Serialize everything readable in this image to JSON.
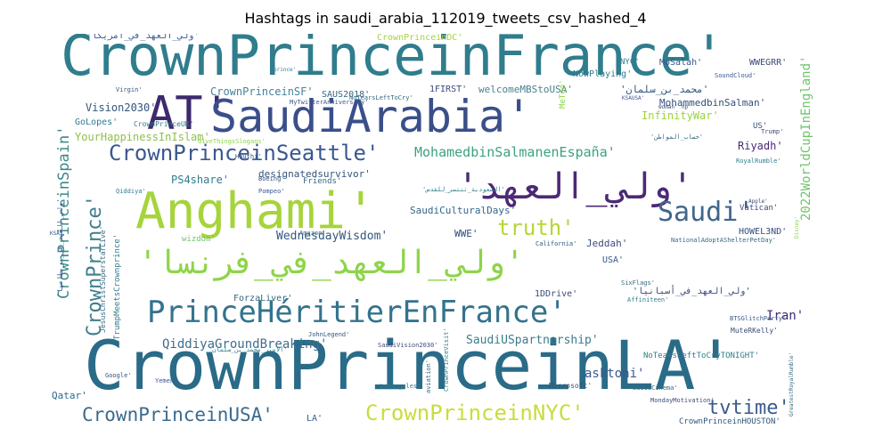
{
  "title": "Hashtags in saudi_arabia_112019_tweets_csv_hashed_4",
  "words": [
    "CrownPrinceinFrance'",
    "CrownPrinceinLA'",
    "AT'",
    "SaudiArabia'",
    "Anghami'",
    "'ولي_العهد_في_فرنسا'",
    "PrinceHéritierEnFrance'",
    "'ولي_العهد'",
    "CrownPrinceinSeattle'",
    "CrownPrinceinUSA'",
    "CrownPrinceinNYC'",
    "CrownPrince'",
    "Saudi'",
    "tvtime'",
    "CrownPrinceinSpain'",
    "truth'",
    "MohamedbinSalmanenEspaña'",
    "QiddiyaGroundBreaking'",
    "2022WorldCupInEngland'",
    "SaudiUSpartnership'",
    "WednesdayWisdom'",
    "YourHappinessInIslam'",
    "CrownPrinceinSF'",
    "Vision2030'",
    "SaudiCulturalDays'",
    "welcomeMBStoUSA'",
    "MohammedbinSalman'",
    "InfinityWar'",
    "PS4share'",
    "designatedsurvivor'",
    "ForzaLiver'",
    "1DDrive'",
    "asktoni'",
    "Riyadh'",
    "Iran'",
    "HOWEL3ND'",
    "Jeddah'",
    "WWE'",
    "USA'",
    "Qatar'",
    "GoLopes'",
    "1FIRST'",
    "SAUS2018'",
    "MoSalah'",
    "WWEGRR'",
    "NowPlaying'",
    "CrownPrinceinDC'",
    "NoTearsLeftToCryTONIGHT'",
    "CrownPrinceinHOUSTON'",
    "Vatican'",
    "MeToo'",
    "LA'",
    "wizdom'",
    "TrumpMeetsCrownprince'",
    "JesusChristSuperstarLive'",
    "Friends'",
    "NYC'",
    "US'",
    "CrownPrinceUK'",
    "Microsoft'",
    "MuteRKelly'",
    "BTSGlitchParty'",
    "Google'",
    "NoTearsLeftToCry'",
    "Virgin'",
    "Trump'",
    "SixFlags'",
    "Affiniteen'",
    "Houthi'",
    "Pompeo'",
    "SaudiCinema'",
    "CrownPrinceVisit'",
    "California'",
    "GiveThingsSlogans'",
    "MyTwitterAnniversary'",
    "NationalAdoptAShelterPetDay'",
    "MondayMotivation'",
    "JohnLegend'",
    "LosAngeles'",
    "aviation'",
    "Yemen'",
    "SaudiVision2030'",
    "Boeing'",
    "Qiddiya'",
    "Amazon'",
    "SoundCloud'",
    "Apple'",
    "KSA'",
    "RoyalRumble'",
    "GreatestRoyalRumble'",
    "KSAUSA'",
    "woman'",
    "np'",
    "prince'",
    "Disney'",
    "'ولي_العهد_في_امريكا'",
    "'محمد_بن_سلمان'",
    "'ولي_العهد_في_أسبانيا'",
    "'السعودية_تنتصر_للقدس'",
    "'ولي_العهد_في_بريطانيا'",
    "'حساب_المواطن'",
    "'الأمير_محمد_بن_سلمان'"
  ]
}
